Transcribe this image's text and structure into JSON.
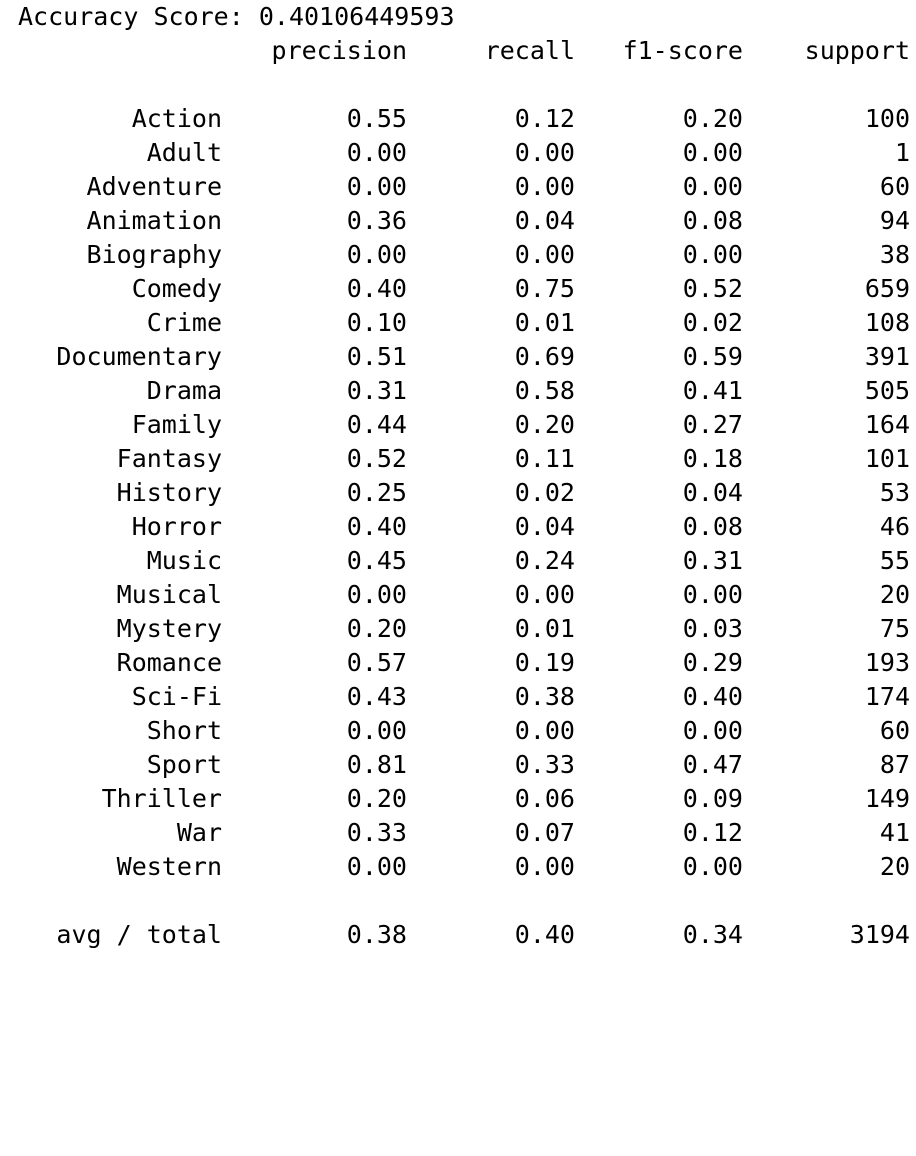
{
  "title": {
    "label": "Accuracy Score:",
    "value": "0.40106449593"
  },
  "headers": {
    "precision": "precision",
    "recall": "recall",
    "f1": "f1-score",
    "support": "support"
  },
  "rows": [
    {
      "label": "Action",
      "precision": "0.55",
      "recall": "0.12",
      "f1": "0.20",
      "support": "100"
    },
    {
      "label": "Adult",
      "precision": "0.00",
      "recall": "0.00",
      "f1": "0.00",
      "support": "1"
    },
    {
      "label": "Adventure",
      "precision": "0.00",
      "recall": "0.00",
      "f1": "0.00",
      "support": "60"
    },
    {
      "label": "Animation",
      "precision": "0.36",
      "recall": "0.04",
      "f1": "0.08",
      "support": "94"
    },
    {
      "label": "Biography",
      "precision": "0.00",
      "recall": "0.00",
      "f1": "0.00",
      "support": "38"
    },
    {
      "label": "Comedy",
      "precision": "0.40",
      "recall": "0.75",
      "f1": "0.52",
      "support": "659"
    },
    {
      "label": "Crime",
      "precision": "0.10",
      "recall": "0.01",
      "f1": "0.02",
      "support": "108"
    },
    {
      "label": "Documentary",
      "precision": "0.51",
      "recall": "0.69",
      "f1": "0.59",
      "support": "391"
    },
    {
      "label": "Drama",
      "precision": "0.31",
      "recall": "0.58",
      "f1": "0.41",
      "support": "505"
    },
    {
      "label": "Family",
      "precision": "0.44",
      "recall": "0.20",
      "f1": "0.27",
      "support": "164"
    },
    {
      "label": "Fantasy",
      "precision": "0.52",
      "recall": "0.11",
      "f1": "0.18",
      "support": "101"
    },
    {
      "label": "History",
      "precision": "0.25",
      "recall": "0.02",
      "f1": "0.04",
      "support": "53"
    },
    {
      "label": "Horror",
      "precision": "0.40",
      "recall": "0.04",
      "f1": "0.08",
      "support": "46"
    },
    {
      "label": "Music",
      "precision": "0.45",
      "recall": "0.24",
      "f1": "0.31",
      "support": "55"
    },
    {
      "label": "Musical",
      "precision": "0.00",
      "recall": "0.00",
      "f1": "0.00",
      "support": "20"
    },
    {
      "label": "Mystery",
      "precision": "0.20",
      "recall": "0.01",
      "f1": "0.03",
      "support": "75"
    },
    {
      "label": "Romance",
      "precision": "0.57",
      "recall": "0.19",
      "f1": "0.29",
      "support": "193"
    },
    {
      "label": "Sci-Fi",
      "precision": "0.43",
      "recall": "0.38",
      "f1": "0.40",
      "support": "174"
    },
    {
      "label": "Short",
      "precision": "0.00",
      "recall": "0.00",
      "f1": "0.00",
      "support": "60"
    },
    {
      "label": "Sport",
      "precision": "0.81",
      "recall": "0.33",
      "f1": "0.47",
      "support": "87"
    },
    {
      "label": "Thriller",
      "precision": "0.20",
      "recall": "0.06",
      "f1": "0.09",
      "support": "149"
    },
    {
      "label": "War",
      "precision": "0.33",
      "recall": "0.07",
      "f1": "0.12",
      "support": "41"
    },
    {
      "label": "Western",
      "precision": "0.00",
      "recall": "0.00",
      "f1": "0.00",
      "support": "20"
    }
  ],
  "total": {
    "label": "avg / total",
    "precision": "0.38",
    "recall": "0.40",
    "f1": "0.34",
    "support": "3194"
  }
}
